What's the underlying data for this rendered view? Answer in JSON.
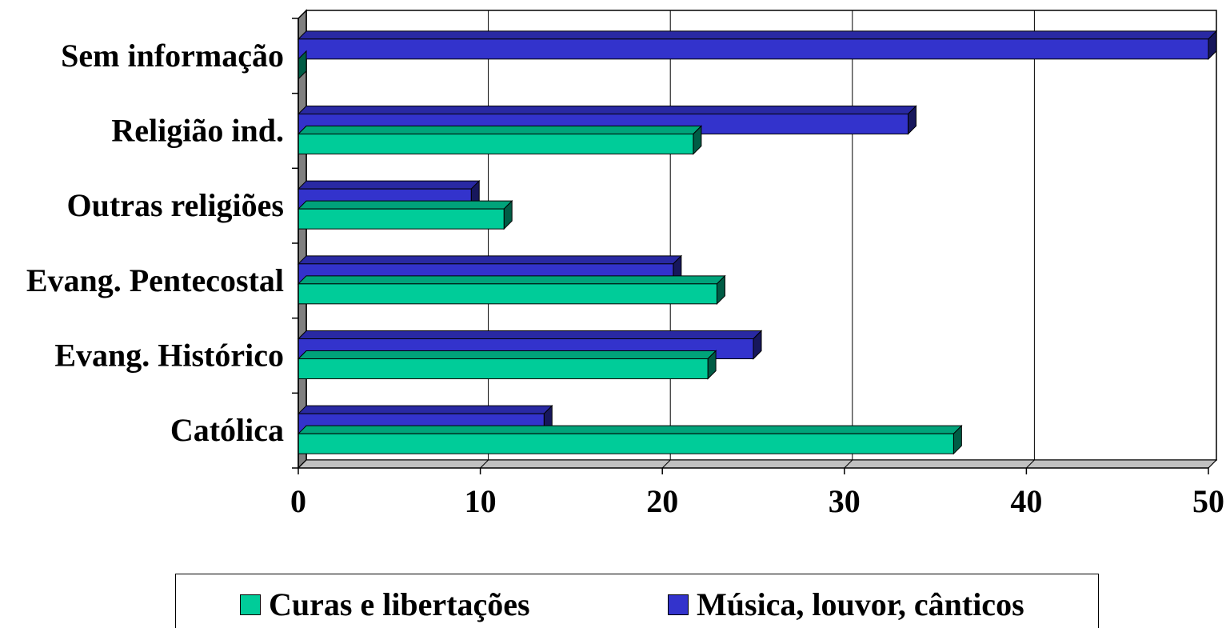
{
  "chart_data": {
    "type": "bar",
    "orientation": "horizontal",
    "categories": [
      "Católica",
      "Evang. Histórico",
      "Evang. Pentecostal",
      "Outras religiões",
      "Religião ind.",
      "Sem informação"
    ],
    "series": [
      {
        "name": "Curas e libertações",
        "color": "#00CC99",
        "values": [
          36,
          22.5,
          23,
          11.3,
          21.7,
          0
        ]
      },
      {
        "name": "Música, louvor, cânticos",
        "color": "#3333CC",
        "values": [
          13.5,
          25,
          20.6,
          9.5,
          33.5,
          50
        ]
      }
    ],
    "xlim": [
      0,
      50
    ],
    "xticks": [
      "0",
      "10",
      "20",
      "30",
      "40",
      "50"
    ],
    "grid": true,
    "legend_position": "bottom"
  }
}
